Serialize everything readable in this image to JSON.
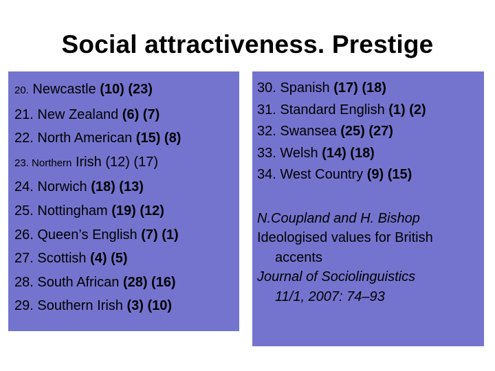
{
  "slide": {
    "title": "Social attractiveness. Prestige"
  },
  "left_list": [
    {
      "lead": "20.",
      "name": "Newcastle",
      "nums": "(10) (23)",
      "small_lead": true
    },
    {
      "lead": "21.",
      "name": "New Zealand",
      "nums": "(6) (7)"
    },
    {
      "lead": "22.",
      "name": "North American",
      "nums": "(15) (8)"
    },
    {
      "lead": "23. Northern",
      "name": "Irish",
      "nums": "(12) (17)",
      "small_lead": true
    },
    {
      "lead": "24.",
      "name": "Norwich",
      "nums": "(18) (13)"
    },
    {
      "lead": "25.",
      "name": "Nottingham",
      "nums": "(19) (12)"
    },
    {
      "lead": "26.",
      "name": "Queen’s English",
      "nums": "(7) (1)"
    },
    {
      "lead": "27.",
      "name": "Scottish",
      "nums": "(4) (5)"
    },
    {
      "lead": "28.",
      "name": "South African",
      "nums": "(28) (16)"
    },
    {
      "lead": "29.",
      "name": "Southern Irish",
      "nums": "(3) (10)"
    }
  ],
  "right_list": [
    {
      "lead": "30.",
      "name": "Spanish",
      "nums": "(17) (18)"
    },
    {
      "lead": "31.",
      "name": "Standard English",
      "nums": "(1) (2)"
    },
    {
      "lead": "32.",
      "name": "Swansea",
      "nums": "(25) (27)"
    },
    {
      "lead": "33.",
      "name": "Welsh",
      "nums": "(14) (18)"
    },
    {
      "lead": "34.",
      "name": "West Country",
      "nums": "(9) (15)"
    }
  ],
  "reference": {
    "authors": "N.Coupland and H. Bishop",
    "title_line1": "Ideologised values for British",
    "title_line2": "accents",
    "journal_line1": "Journal of Sociolinguistics",
    "journal_line2": "11/1, 2007: 74–93"
  }
}
